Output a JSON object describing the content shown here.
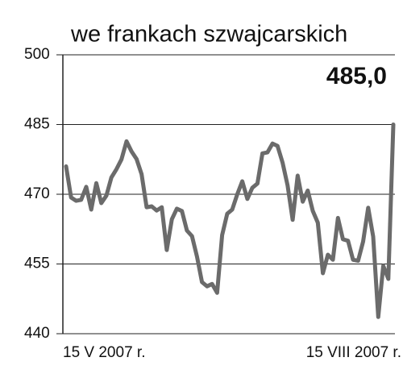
{
  "chart_data": {
    "type": "line",
    "title": "we frankach szwajcarskich",
    "annotation": "485,0",
    "categories": [
      "15 V 2007 r.",
      null,
      null,
      null,
      null,
      null,
      null,
      null,
      null,
      null,
      null,
      null,
      null,
      null,
      null,
      null,
      null,
      null,
      null,
      null,
      null,
      null,
      null,
      null,
      null,
      null,
      null,
      null,
      null,
      null,
      null,
      null,
      null,
      null,
      null,
      null,
      null,
      null,
      null,
      null,
      null,
      null,
      null,
      null,
      null,
      null,
      null,
      null,
      null,
      null,
      null,
      null,
      null,
      null,
      null,
      null,
      null,
      null,
      null,
      null,
      null,
      null,
      null,
      null,
      null,
      "15 VIII 2007 r."
    ],
    "values": [
      476.0,
      469.3,
      468.6,
      468.8,
      471.6,
      466.7,
      472.4,
      468.1,
      469.7,
      473.6,
      475.4,
      477.5,
      481.4,
      479.2,
      477.6,
      474.3,
      467.2,
      467.4,
      466.5,
      467.2,
      458.0,
      464.6,
      466.9,
      466.4,
      462.2,
      461.0,
      456.6,
      451.1,
      450.2,
      450.7,
      448.8,
      461.2,
      465.8,
      466.7,
      470.0,
      472.8,
      469.0,
      471.4,
      472.3,
      478.8,
      479.0,
      480.9,
      480.4,
      476.8,
      471.9,
      464.5,
      474.0,
      468.4,
      470.8,
      466.4,
      463.9,
      453.0,
      457.0,
      455.9,
      464.9,
      460.3,
      460.0,
      455.9,
      455.7,
      459.8,
      467.1,
      460.9,
      443.6,
      454.6,
      451.8,
      485.0
    ],
    "color": "#6b6b6b",
    "ylim": [
      440,
      500
    ],
    "yticks": [
      440,
      455,
      470,
      485,
      500
    ],
    "grid": true
  }
}
